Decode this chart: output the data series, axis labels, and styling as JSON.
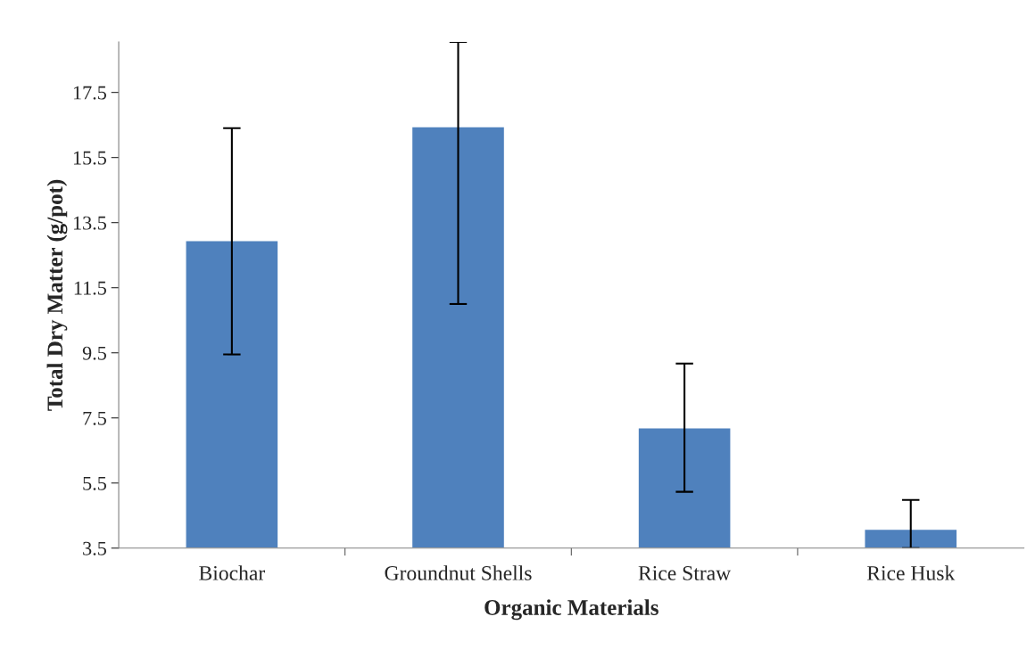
{
  "chart_data": {
    "type": "bar",
    "xlabel": "Organic Materials",
    "ylabel": "Total Dry Matter (g/pot)",
    "categories": [
      "Biochar",
      "Groundnut Shells",
      "Rice Straw",
      "Rice Husk"
    ],
    "values": [
      12.95,
      16.45,
      7.2,
      4.08
    ],
    "errors": [
      [
        9.45,
        16.4
      ],
      [
        11.0,
        19.05
      ],
      [
        5.23,
        9.17
      ],
      [
        3.5,
        4.98
      ]
    ],
    "color": "#4f81bd",
    "ylim": [
      3.5,
      19.05
    ],
    "yticks": [
      3.5,
      5.5,
      7.5,
      9.5,
      11.5,
      13.5,
      15.5,
      17.5
    ],
    "grid": false,
    "legend": false
  }
}
